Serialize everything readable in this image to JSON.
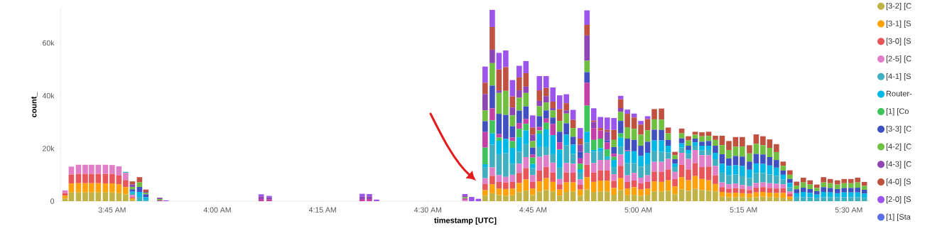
{
  "chart_data": {
    "type": "bar",
    "stacked": true,
    "xlabel": "timestamp [UTC]",
    "ylabel": "count_",
    "x": [
      3.638,
      3.653,
      3.67,
      3.686,
      3.701,
      3.717,
      3.734,
      3.75,
      3.766,
      3.782,
      3.798,
      3.815,
      3.83,
      3.863,
      3.878,
      4.104,
      4.123,
      4.344,
      4.361,
      4.378,
      4.588,
      4.604,
      4.62,
      4.636,
      4.653,
      4.669,
      4.685,
      4.701,
      4.717,
      4.733,
      4.749,
      4.765,
      4.781,
      4.797,
      4.813,
      4.829,
      4.845,
      4.862,
      4.878,
      4.894,
      4.91,
      4.926,
      4.942,
      4.958,
      4.974,
      4.99,
      5.006,
      5.022,
      5.038,
      5.055,
      5.071,
      5.087,
      5.103,
      5.119,
      5.135,
      5.151,
      5.167,
      5.183,
      5.199,
      5.215,
      5.231,
      5.247,
      5.264,
      5.28,
      5.296,
      5.312,
      5.328,
      5.344,
      5.36,
      5.376,
      5.392,
      5.408,
      5.424,
      5.44,
      5.456,
      5.473,
      5.489,
      5.505,
      5.521,
      5.537
    ],
    "xlim": [
      3.627,
      5.551
    ],
    "ylim": [
      0,
      73000
    ],
    "xticks": [
      {
        "value": 3.75,
        "label": "3:45 AM"
      },
      {
        "value": 4,
        "label": "4:00 AM"
      },
      {
        "value": 4.25,
        "label": "4:15 AM"
      },
      {
        "value": 4.5,
        "label": "4:30 AM"
      },
      {
        "value": 4.75,
        "label": "4:45 AM"
      },
      {
        "value": 5,
        "label": "5:00 AM"
      },
      {
        "value": 5.25,
        "label": "5:15 AM"
      },
      {
        "value": 5.5,
        "label": "5:30 AM"
      }
    ],
    "yticks": [
      0,
      {
        "value": 20000,
        "label": "20k"
      },
      {
        "value": 40000,
        "label": "40k"
      },
      {
        "value": 60000,
        "label": "60k"
      }
    ],
    "legend": "right",
    "series": [
      {
        "name": "[3-2] [C",
        "color": "#c0b244",
        "values": [
          1000,
          3300,
          3300,
          3300,
          3300,
          3300,
          3300,
          3300,
          3000,
          2600,
          500,
          null,
          null,
          null,
          null,
          null,
          null,
          null,
          null,
          null,
          null,
          null,
          null,
          2100,
          3000,
          2300,
          2100,
          2200,
          3400,
          4000,
          2300,
          3700,
          4200,
          3700,
          2100,
          3500,
          3700,
          2100,
          4400,
          3500,
          3700,
          3700,
          2400,
          4200,
          2200,
          2400,
          2000,
          2400,
          3700,
          3700,
          3900,
          2600,
          4400,
          3900,
          4700,
          4200,
          3900,
          3700,
          1700,
          1500,
          1500,
          1500,
          1300,
          1500,
          1700,
          1500,
          1400,
          1300,
          800,
          null,
          null,
          null,
          null,
          null,
          null,
          null,
          null,
          null,
          null,
          null
        ]
      },
      {
        "name": "[3-1] [S",
        "color": "#ffa10a",
        "values": [
          1100,
          3400,
          3500,
          3500,
          3500,
          3500,
          3400,
          3400,
          3400,
          2700,
          500,
          null,
          null,
          null,
          null,
          null,
          null,
          null,
          null,
          null,
          null,
          null,
          null,
          2100,
          3400,
          2500,
          2500,
          2600,
          3500,
          4200,
          2500,
          3800,
          4500,
          3600,
          2300,
          3600,
          3400,
          2300,
          4700,
          3800,
          4100,
          4000,
          2600,
          4500,
          2600,
          2900,
          2400,
          2400,
          3800,
          3600,
          4000,
          3000,
          4700,
          4000,
          4800,
          4200,
          4000,
          2800,
          1800,
          1600,
          1700,
          1500,
          1500,
          1800,
          1800,
          1700,
          1700,
          1800,
          900,
          null,
          null,
          null,
          null,
          null,
          null,
          null,
          null,
          null,
          null,
          null
        ]
      },
      {
        "name": "[3-0] [S",
        "color": "#e8555a",
        "values": [
          1000,
          3400,
          3500,
          3500,
          3500,
          3500,
          3600,
          3600,
          3300,
          2700,
          500,
          null,
          null,
          null,
          null,
          null,
          null,
          null,
          null,
          null,
          null,
          null,
          null,
          2300,
          3200,
          2500,
          2500,
          2500,
          3800,
          4300,
          2500,
          4100,
          4200,
          3600,
          2000,
          3800,
          3700,
          1800,
          4700,
          3500,
          3900,
          3900,
          2700,
          4700,
          2500,
          2500,
          2400,
          2500,
          3700,
          3800,
          4100,
          2800,
          4700,
          4100,
          4900,
          4500,
          5200,
          3300,
          1800,
          1600,
          1700,
          1600,
          1400,
          1800,
          1800,
          1800,
          1700,
          1800,
          1100,
          null,
          null,
          null,
          null,
          null,
          null,
          null,
          null,
          null,
          null,
          null
        ]
      },
      {
        "name": "[2-5] [C",
        "color": "#e07fc8",
        "values": [
          1000,
          3000,
          3500,
          3500,
          3500,
          3500,
          3500,
          3400,
          3500,
          2700,
          800,
          null,
          null,
          null,
          null,
          null,
          null,
          null,
          null,
          null,
          400,
          null,
          null,
          2200,
          3200,
          2600,
          2100,
          2700,
          3500,
          4200,
          2600,
          5200,
          4500,
          3700,
          2000,
          3500,
          3400,
          2000,
          4500,
          3600,
          3900,
          4000,
          2500,
          4300,
          2500,
          2900,
          2100,
          2500,
          3700,
          3800,
          4000,
          2700,
          4500,
          4000,
          5000,
          4500,
          4300,
          3600,
          1800,
          1700,
          1800,
          1500,
          1500,
          1800,
          1800,
          1800,
          1800,
          1500,
          900,
          null,
          null,
          null,
          null,
          null,
          null,
          null,
          null,
          null,
          null,
          null
        ]
      },
      {
        "name": "[4-1] [S",
        "color": "#40afc0",
        "values": [
          null,
          null,
          null,
          null,
          null,
          null,
          null,
          null,
          null,
          400,
          700,
          1600,
          500,
          null,
          null,
          null,
          null,
          null,
          null,
          null,
          null,
          null,
          null,
          4200,
          8600,
          7900,
          9000,
          4200,
          4500,
          4900,
          2600,
          3700,
          3100,
          3200,
          4300,
          6800,
          3800,
          2600,
          4000,
          4300,
          3300,
          600,
          2700,
          3000,
          4600,
          3700,
          4200,
          4200,
          4000,
          3800,
          2500,
          1800,
          2000,
          2000,
          1600,
          1800,
          2000,
          2500,
          3700,
          3500,
          3400,
          3600,
          3100,
          3800,
          3600,
          3300,
          3000,
          1800,
          1600,
          1400,
          1500,
          1500,
          1300,
          1500,
          1500,
          1500,
          1500,
          1500,
          1500,
          1300
        ]
      },
      {
        "name": "Router-",
        "color": "#00b8e6",
        "values": [
          null,
          null,
          null,
          null,
          null,
          null,
          null,
          null,
          null,
          null,
          600,
          1900,
          1000,
          null,
          null,
          null,
          null,
          null,
          null,
          null,
          null,
          null,
          null,
          1100,
          4300,
          5100,
          5400,
          6000,
          5500,
          5200,
          1600,
          5100,
          6700,
          7200,
          6700,
          4000,
          3400,
          1300,
          4000,
          700,
          1200,
          700,
          2700,
          3400,
          4500,
          4500,
          4000,
          4300,
          4100,
          4300,
          2500,
          1300,
          1600,
          1400,
          1300,
          1800,
          1600,
          2400,
          3400,
          3500,
          3500,
          3600,
          3100,
          3600,
          3400,
          3400,
          3100,
          1800,
          1600,
          1600,
          2000,
          1600,
          1200,
          2000,
          1800,
          1500,
          1800,
          1800,
          1800,
          1600
        ]
      },
      {
        "name": "[1] [Co",
        "color": "#3ec45a",
        "values": [
          null,
          null,
          null,
          null,
          null,
          null,
          null,
          null,
          null,
          null,
          null,
          null,
          null,
          null,
          null,
          null,
          null,
          null,
          null,
          null,
          null,
          null,
          null,
          6300,
          4900,
          1200,
          null,
          2600,
          3200,
          2500,
          2400,
          1200,
          2500,
          null,
          200,
          null,
          null,
          2100,
          9900,
          3800,
          3600,
          2700,
          1200,
          1600,
          null,
          null,
          null,
          null,
          null,
          null,
          null,
          null,
          null,
          null,
          null,
          null,
          null,
          null,
          null,
          null,
          null,
          null,
          null,
          null,
          null,
          null,
          null,
          null,
          null,
          null,
          null,
          null,
          null,
          null,
          null,
          null,
          null,
          null,
          null,
          null
        ]
      },
      {
        "color": "#c43fa6",
        "values": [
          null,
          null,
          null,
          null,
          null,
          null,
          null,
          null,
          null,
          null,
          null,
          null,
          null,
          300,
          null,
          800,
          600,
          800,
          800,
          null,
          600,
          null,
          null,
          5900,
          4600,
          1300,
          null,
          1300,
          2200,
          1800,
          1100,
          1300,
          1600,
          4300,
          2700,
          null,
          null,
          2000,
          8700,
          4500,
          3100,
          2700,
          1200,
          null,
          400,
          null,
          null,
          null,
          null,
          null,
          null,
          null,
          null,
          null,
          null,
          null,
          null,
          null,
          null,
          null,
          null,
          null,
          null,
          null,
          null,
          null,
          null,
          null,
          null,
          null,
          null,
          null,
          null,
          null,
          null,
          null,
          null,
          null,
          null,
          null
        ]
      },
      {
        "name": "[3-3] [C",
        "color": "#4050c0",
        "values": [
          null,
          null,
          null,
          null,
          null,
          null,
          null,
          null,
          null,
          null,
          900,
          1900,
          1100,
          null,
          null,
          null,
          null,
          null,
          null,
          null,
          null,
          null,
          null,
          4100,
          8600,
          7700,
          9100,
          4300,
          4700,
          4800,
          2700,
          4100,
          3100,
          2400,
          4000,
          4300,
          3000,
          2500,
          4000,
          null,
          null,
          700,
          2500,
          4700,
          4400,
          4300,
          3900,
          4200,
          4100,
          4000,
          2200,
          1700,
          1900,
          1600,
          1400,
          1500,
          1800,
          2700,
          3600,
          2800,
          3500,
          3600,
          3100,
          3600,
          3600,
          3200,
          2900,
          1600,
          1500,
          1500,
          1600,
          1500,
          1300,
          1800,
          1700,
          1600,
          1700,
          1700,
          1800,
          1400
        ]
      },
      {
        "name": "[4-2] [C",
        "color": "#70bf40",
        "values": [
          null,
          null,
          null,
          null,
          null,
          null,
          null,
          null,
          null,
          null,
          900,
          1700,
          600,
          500,
          null,
          null,
          null,
          null,
          null,
          null,
          500,
          null,
          null,
          4100,
          8500,
          7900,
          9100,
          4100,
          4900,
          5100,
          2500,
          3800,
          3000,
          2700,
          4100,
          3700,
          3300,
          null,
          4300,
          null,
          null,
          null,
          2700,
          3400,
          4300,
          4200,
          4200,
          4300,
          3900,
          3900,
          2500,
          1500,
          1900,
          2000,
          1500,
          2100,
          1900,
          2200,
          3400,
          3200,
          3500,
          3800,
          3100,
          3800,
          3500,
          3500,
          3000,
          1800,
          1600,
          1400,
          2000,
          1700,
          1200,
          1800,
          1800,
          1700,
          1800,
          1800,
          2000,
          1500
        ]
      },
      {
        "name": "[4-3] [C",
        "color": "#8e45b5",
        "values": [
          null,
          null,
          null,
          null,
          null,
          null,
          null,
          null,
          null,
          null,
          900,
          null,
          300,
          500,
          null,
          1000,
          800,
          1000,
          1000,
          null,
          600,
          null,
          null,
          6200,
          5100,
          1000,
          null,
          3000,
          2800,
          2400,
          2400,
          2000,
          2400,
          900,
          null,
          1200,
          null,
          2700,
          9600,
          2300,
          null,
          3300,
          null,
          1500,
          null,
          null,
          null,
          null,
          null,
          null,
          null,
          null,
          null,
          null,
          null,
          null,
          null,
          null,
          null,
          null,
          null,
          null,
          null,
          null,
          null,
          null,
          null,
          null,
          null,
          null,
          null,
          null,
          null,
          null,
          null,
          null,
          null,
          null,
          null,
          null
        ]
      },
      {
        "name": "[4-0] [S",
        "color": "#c0503f",
        "values": [
          null,
          null,
          null,
          null,
          null,
          null,
          null,
          null,
          null,
          null,
          1200,
          2000,
          900,
          null,
          null,
          null,
          null,
          null,
          null,
          null,
          null,
          null,
          null,
          4300,
          8600,
          7900,
          9000,
          4200,
          4900,
          5100,
          2700,
          4000,
          3100,
          2400,
          4500,
          2700,
          3100,
          2300,
          4000,
          500,
          900,
          700,
          3800,
          3300,
          5100,
          4300,
          3800,
          4300,
          3900,
          4200,
          2200,
          1300,
          1800,
          1600,
          1100,
          1500,
          1600,
          1600,
          3600,
          3400,
          3700,
          3600,
          3100,
          3600,
          3400,
          3200,
          3000,
          1600,
          1700,
          1500,
          1800,
          1600,
          1300,
          2000,
          1600,
          1600,
          1600,
          1600,
          1800,
          1500
        ]
      },
      {
        "name": "[2-0] [S",
        "color": "#9b55ed",
        "values": [
          null,
          null,
          null,
          null,
          null,
          null,
          null,
          null,
          null,
          null,
          null,
          null,
          null,
          null,
          300,
          800,
          600,
          1000,
          900,
          600,
          600,
          1600,
          900,
          6100,
          6500,
          6300,
          6300,
          6200,
          4400,
          4600,
          4600,
          5400,
          4500,
          5400,
          5200,
          3400,
          3800,
          4000,
          5500,
          4700,
          4200,
          4700,
          4500,
          1300,
          1600,
          1500,
          1400,
          1100,
          null,
          null,
          null,
          null,
          null,
          null,
          null,
          null,
          null,
          null,
          null,
          null,
          null,
          null,
          null,
          null,
          null,
          null,
          null,
          null,
          null,
          null,
          null,
          null,
          null,
          null,
          null,
          null,
          null,
          null,
          null,
          null
        ]
      },
      {
        "name": "[1] [Sta",
        "color": "#5b6ee8",
        "values": [
          null,
          null,
          null,
          null,
          null,
          null,
          null,
          null,
          null,
          null,
          null,
          null,
          null,
          null,
          null,
          null,
          null,
          null,
          null,
          null,
          null,
          null,
          null,
          null,
          null,
          null,
          null,
          null,
          null,
          null,
          null,
          null,
          null,
          null,
          null,
          null,
          null,
          null,
          null,
          null,
          null,
          null,
          null,
          null,
          null,
          null,
          null,
          null,
          null,
          null,
          null,
          null,
          null,
          null,
          null,
          null,
          null,
          null,
          null,
          null,
          null,
          null,
          null,
          null,
          null,
          null,
          null,
          null,
          null,
          null,
          null,
          null,
          null,
          null,
          null,
          null,
          null,
          null,
          null,
          null
        ]
      }
    ]
  }
}
